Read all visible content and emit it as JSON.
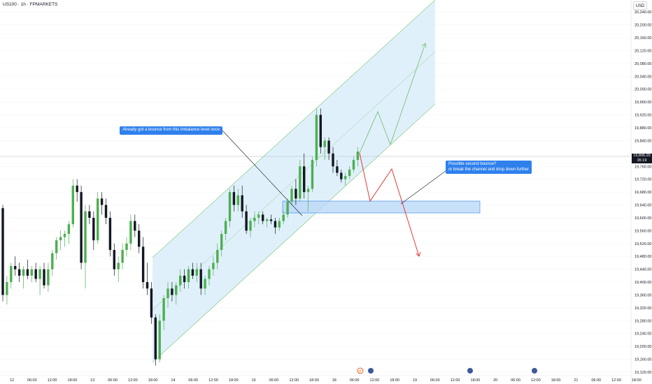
{
  "header": {
    "symbol_title": "US100 · 1h · FPMARKETS",
    "currency_button": "USD"
  },
  "price_axis": {
    "labels": [
      "20,240.00",
      "20,200.00",
      "20,160.00",
      "20,120.00",
      "20,080.00",
      "20,040.00",
      "20,000.00",
      "19,960.00",
      "19,920.00",
      "19,880.00",
      "19,840.00",
      "19,760.00",
      "19,720.00",
      "19,680.00",
      "19,640.00",
      "19,600.00",
      "19,560.00",
      "19,520.00",
      "19,480.00",
      "19,440.00",
      "19,400.00",
      "19,360.00",
      "19,320.00",
      "19,280.00",
      "19,240.00",
      "19,200.00",
      "19,160.00",
      "19,120.00"
    ],
    "current_price": "19,806.20",
    "countdown": "35:19"
  },
  "time_axis": {
    "labels": [
      "12",
      "06:00",
      "12:00",
      "18:00",
      "13",
      "06:00",
      "12:00",
      "18:00",
      "14",
      "06:00",
      "12:00",
      "18:00",
      "16",
      "06:00",
      "12:00",
      "18:00",
      "18",
      "06:00",
      "12:00",
      "18:00",
      "19",
      "06:00",
      "12:00",
      "18:00",
      "20",
      "06:00",
      "12:00",
      "18:00",
      "21",
      "06:00",
      "12:00",
      "18:00"
    ]
  },
  "annotations": {
    "note1": "Already got a bounce from this imbalance level once",
    "note2_line1": "Possible second bounce?",
    "note2_line2": "or break the channel and drop down further"
  },
  "colors": {
    "up": "#4caf50",
    "down": "#131722",
    "channel_fill": "#d6ebfa",
    "channel_line": "#8fd18f",
    "zone_fill": "#bcd8f7",
    "zone_border": "#2f80ed",
    "bull_path": "#81c784",
    "bear_path": "#e53935",
    "note_bg": "#2f80ed"
  },
  "chart_data": {
    "type": "candlestick",
    "symbol": "US100",
    "timeframe": "1h",
    "y_range": [
      19120,
      20260
    ],
    "current_price": 19806.2,
    "imbalance_zone": [
      19628,
      19668
    ],
    "candles": [
      [
        19630,
        19640,
        19340,
        19360
      ],
      [
        19360,
        19420,
        19330,
        19400
      ],
      [
        19400,
        19460,
        19380,
        19450
      ],
      [
        19450,
        19480,
        19420,
        19440
      ],
      [
        19440,
        19460,
        19400,
        19420
      ],
      [
        19420,
        19450,
        19380,
        19440
      ],
      [
        19440,
        19470,
        19410,
        19420
      ],
      [
        19420,
        19450,
        19400,
        19440
      ],
      [
        19440,
        19460,
        19400,
        19410
      ],
      [
        19410,
        19450,
        19360,
        19440
      ],
      [
        19440,
        19460,
        19380,
        19390
      ],
      [
        19390,
        19460,
        19370,
        19440
      ],
      [
        19440,
        19500,
        19420,
        19490
      ],
      [
        19490,
        19540,
        19470,
        19530
      ],
      [
        19530,
        19560,
        19500,
        19540
      ],
      [
        19540,
        19560,
        19510,
        19550
      ],
      [
        19550,
        19590,
        19520,
        19580
      ],
      [
        19580,
        19720,
        19570,
        19700
      ],
      [
        19700,
        19720,
        19650,
        19680
      ],
      [
        19680,
        19700,
        19440,
        19460
      ],
      [
        19460,
        19640,
        19380,
        19620
      ],
      [
        19620,
        19640,
        19580,
        19600
      ],
      [
        19600,
        19620,
        19500,
        19530
      ],
      [
        19530,
        19680,
        19520,
        19660
      ],
      [
        19660,
        19680,
        19610,
        19640
      ],
      [
        19640,
        19660,
        19580,
        19600
      ],
      [
        19600,
        19620,
        19480,
        19500
      ],
      [
        19500,
        19520,
        19420,
        19440
      ],
      [
        19440,
        19480,
        19400,
        19460
      ],
      [
        19460,
        19520,
        19440,
        19500
      ],
      [
        19500,
        19540,
        19480,
        19520
      ],
      [
        19520,
        19610,
        19500,
        19590
      ],
      [
        19590,
        19610,
        19540,
        19560
      ],
      [
        19560,
        19580,
        19490,
        19510
      ],
      [
        19510,
        19540,
        19380,
        19400
      ],
      [
        19400,
        19460,
        19360,
        19380
      ],
      [
        19380,
        19400,
        19270,
        19290
      ],
      [
        19290,
        19300,
        19140,
        19160
      ],
      [
        19160,
        19300,
        19150,
        19280
      ],
      [
        19280,
        19360,
        19250,
        19350
      ],
      [
        19350,
        19400,
        19320,
        19380
      ],
      [
        19380,
        19400,
        19340,
        19360
      ],
      [
        19360,
        19400,
        19330,
        19390
      ],
      [
        19390,
        19440,
        19370,
        19420
      ],
      [
        19420,
        19440,
        19380,
        19400
      ],
      [
        19400,
        19450,
        19380,
        19440
      ],
      [
        19440,
        19460,
        19410,
        19420
      ],
      [
        19420,
        19460,
        19400,
        19440
      ],
      [
        19440,
        19460,
        19360,
        19380
      ],
      [
        19380,
        19420,
        19360,
        19410
      ],
      [
        19410,
        19450,
        19390,
        19440
      ],
      [
        19440,
        19480,
        19420,
        19460
      ],
      [
        19460,
        19520,
        19440,
        19500
      ],
      [
        19500,
        19560,
        19480,
        19550
      ],
      [
        19550,
        19600,
        19530,
        19590
      ],
      [
        19590,
        19690,
        19570,
        19680
      ],
      [
        19680,
        19700,
        19620,
        19640
      ],
      [
        19640,
        19690,
        19620,
        19670
      ],
      [
        19670,
        19700,
        19600,
        19620
      ],
      [
        19620,
        19640,
        19550,
        19560
      ],
      [
        19560,
        19600,
        19540,
        19590
      ],
      [
        19590,
        19620,
        19570,
        19600
      ],
      [
        19600,
        19620,
        19580,
        19610
      ],
      [
        19610,
        19620,
        19580,
        19590
      ],
      [
        19590,
        19600,
        19570,
        19595
      ],
      [
        19595,
        19610,
        19580,
        19590
      ],
      [
        19590,
        19600,
        19550,
        19570
      ],
      [
        19570,
        19600,
        19560,
        19590
      ],
      [
        19590,
        19620,
        19580,
        19610
      ],
      [
        19610,
        19660,
        19600,
        19650
      ],
      [
        19650,
        19700,
        19640,
        19690
      ],
      [
        19690,
        19720,
        19640,
        19660
      ],
      [
        19660,
        19780,
        19650,
        19760
      ],
      [
        19760,
        19800,
        19660,
        19680
      ],
      [
        19680,
        19700,
        19620,
        19690
      ],
      [
        19690,
        19790,
        19680,
        19780
      ],
      [
        19780,
        19940,
        19760,
        19920
      ],
      [
        19920,
        19940,
        19800,
        19820
      ],
      [
        19820,
        19850,
        19780,
        19840
      ],
      [
        19840,
        19850,
        19780,
        19800
      ],
      [
        19800,
        19820,
        19740,
        19760
      ],
      [
        19760,
        19780,
        19730,
        19740
      ],
      [
        19740,
        19750,
        19710,
        19720
      ],
      [
        19720,
        19740,
        19700,
        19730
      ],
      [
        19730,
        19760,
        19720,
        19750
      ],
      [
        19750,
        19790,
        19740,
        19780
      ],
      [
        19780,
        19820,
        19760,
        19806
      ]
    ]
  }
}
